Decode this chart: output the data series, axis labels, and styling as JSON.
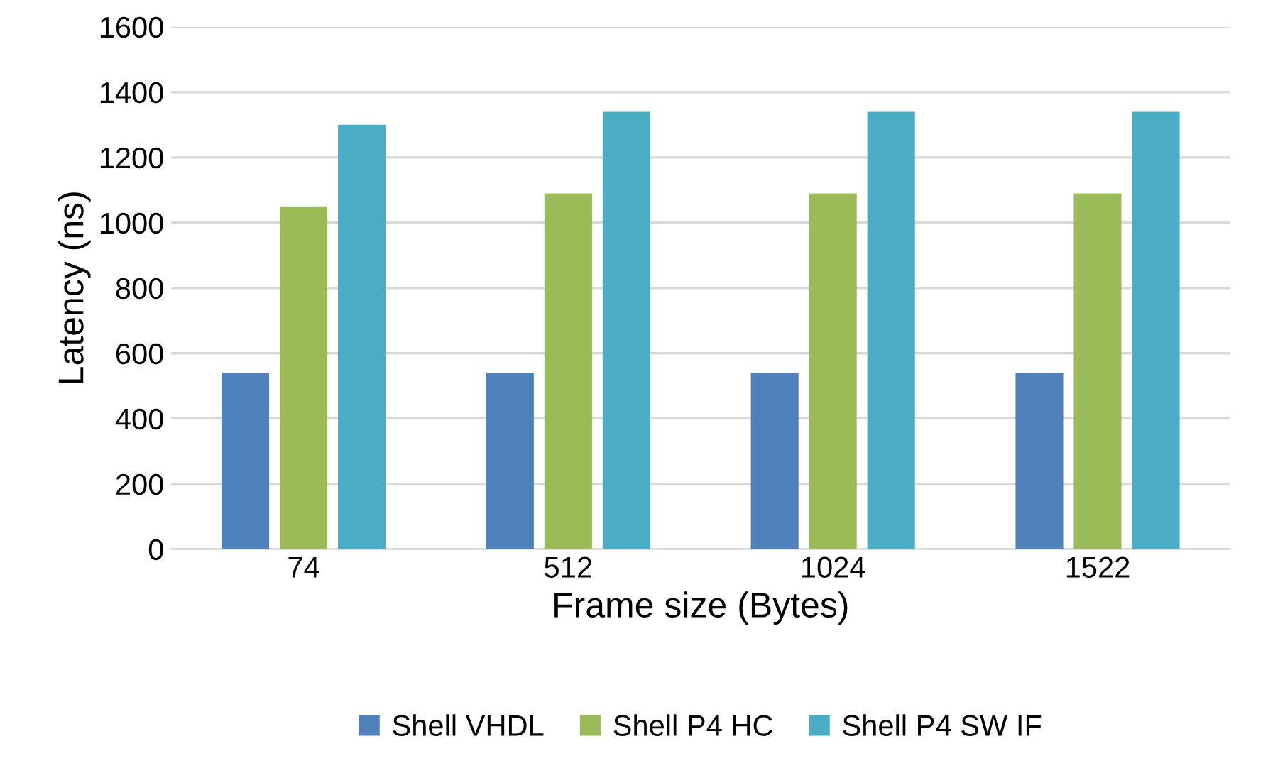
{
  "chart_data": {
    "type": "bar",
    "xlabel": "Frame size (Bytes)",
    "ylabel": "Latency (ns)",
    "categories": [
      "74",
      "512",
      "1024",
      "1522"
    ],
    "series": [
      {
        "name": "Shell VHDL",
        "color": "#4f81bd",
        "values": [
          540,
          540,
          540,
          540
        ]
      },
      {
        "name": "Shell P4 HC",
        "color": "#9bbb59",
        "values": [
          1050,
          1090,
          1090,
          1090
        ]
      },
      {
        "name": "Shell P4 SW IF",
        "color": "#4bacc6",
        "values": [
          1300,
          1340,
          1340,
          1340
        ]
      }
    ],
    "ylim": [
      0,
      1600
    ],
    "yticks": [
      0,
      200,
      400,
      600,
      800,
      1000,
      1200,
      1400,
      1600
    ],
    "grid": "y",
    "legend": "bottom"
  }
}
